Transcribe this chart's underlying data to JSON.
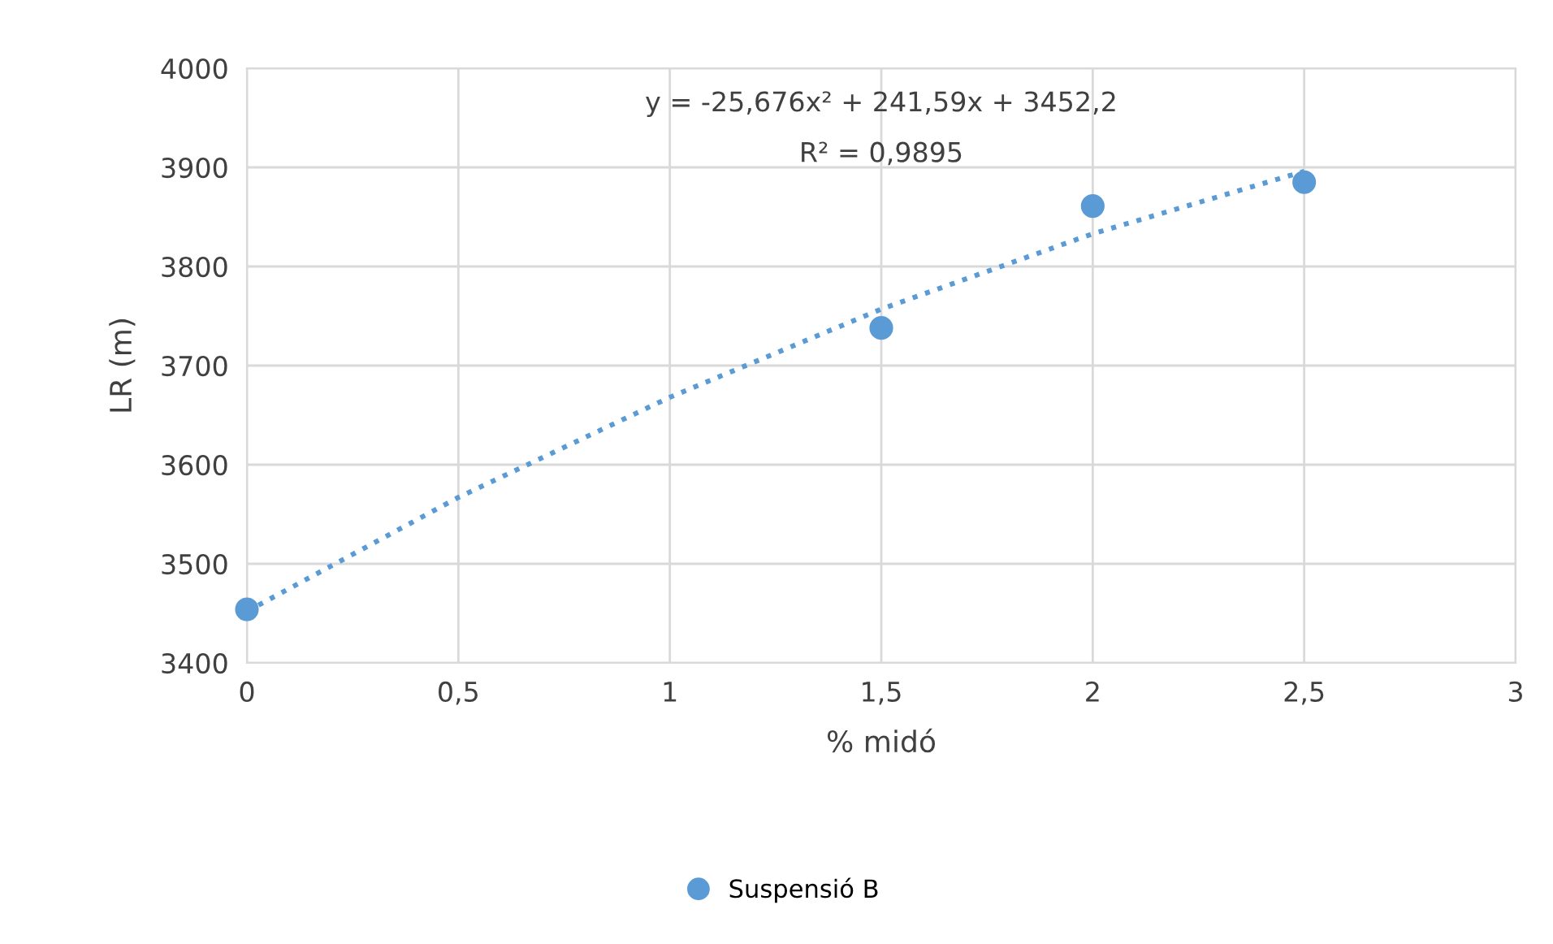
{
  "chart_data": {
    "type": "scatter",
    "xlabel": "% midó",
    "ylabel": "LR (m)",
    "xlim": [
      0,
      3
    ],
    "xticks": [
      0,
      {
        "value": 0.5,
        "label": "0,5"
      },
      1,
      {
        "value": 1.5,
        "label": "1,5"
      },
      2,
      {
        "value": 2.5,
        "label": "2,5"
      },
      3
    ],
    "ylim": [
      3400,
      4000
    ],
    "yticks": [
      3400,
      3500,
      3600,
      3700,
      3800,
      3900,
      4000
    ],
    "grid": true,
    "legend": "bottom",
    "marker": "circle",
    "series": [
      {
        "name": "Suspensió B",
        "color": "#5b9bd5",
        "x": [
          0,
          1.5,
          2,
          2.5
        ],
        "values": [
          3454,
          3738,
          3861,
          3885
        ]
      },
      {
        "type": "line",
        "line_style": "dotted",
        "marker": "none",
        "color": "#5b9bd5",
        "x": [
          0,
          0.5,
          1,
          1.5,
          2,
          2.5
        ],
        "values": [
          3452,
          3567,
          3668,
          3757,
          3833,
          3896
        ]
      }
    ],
    "annotations": [
      {
        "text": "y = -25,676x² + 241,59x + 3452,2"
      },
      {
        "text": "R² = 0,9895"
      }
    ]
  }
}
